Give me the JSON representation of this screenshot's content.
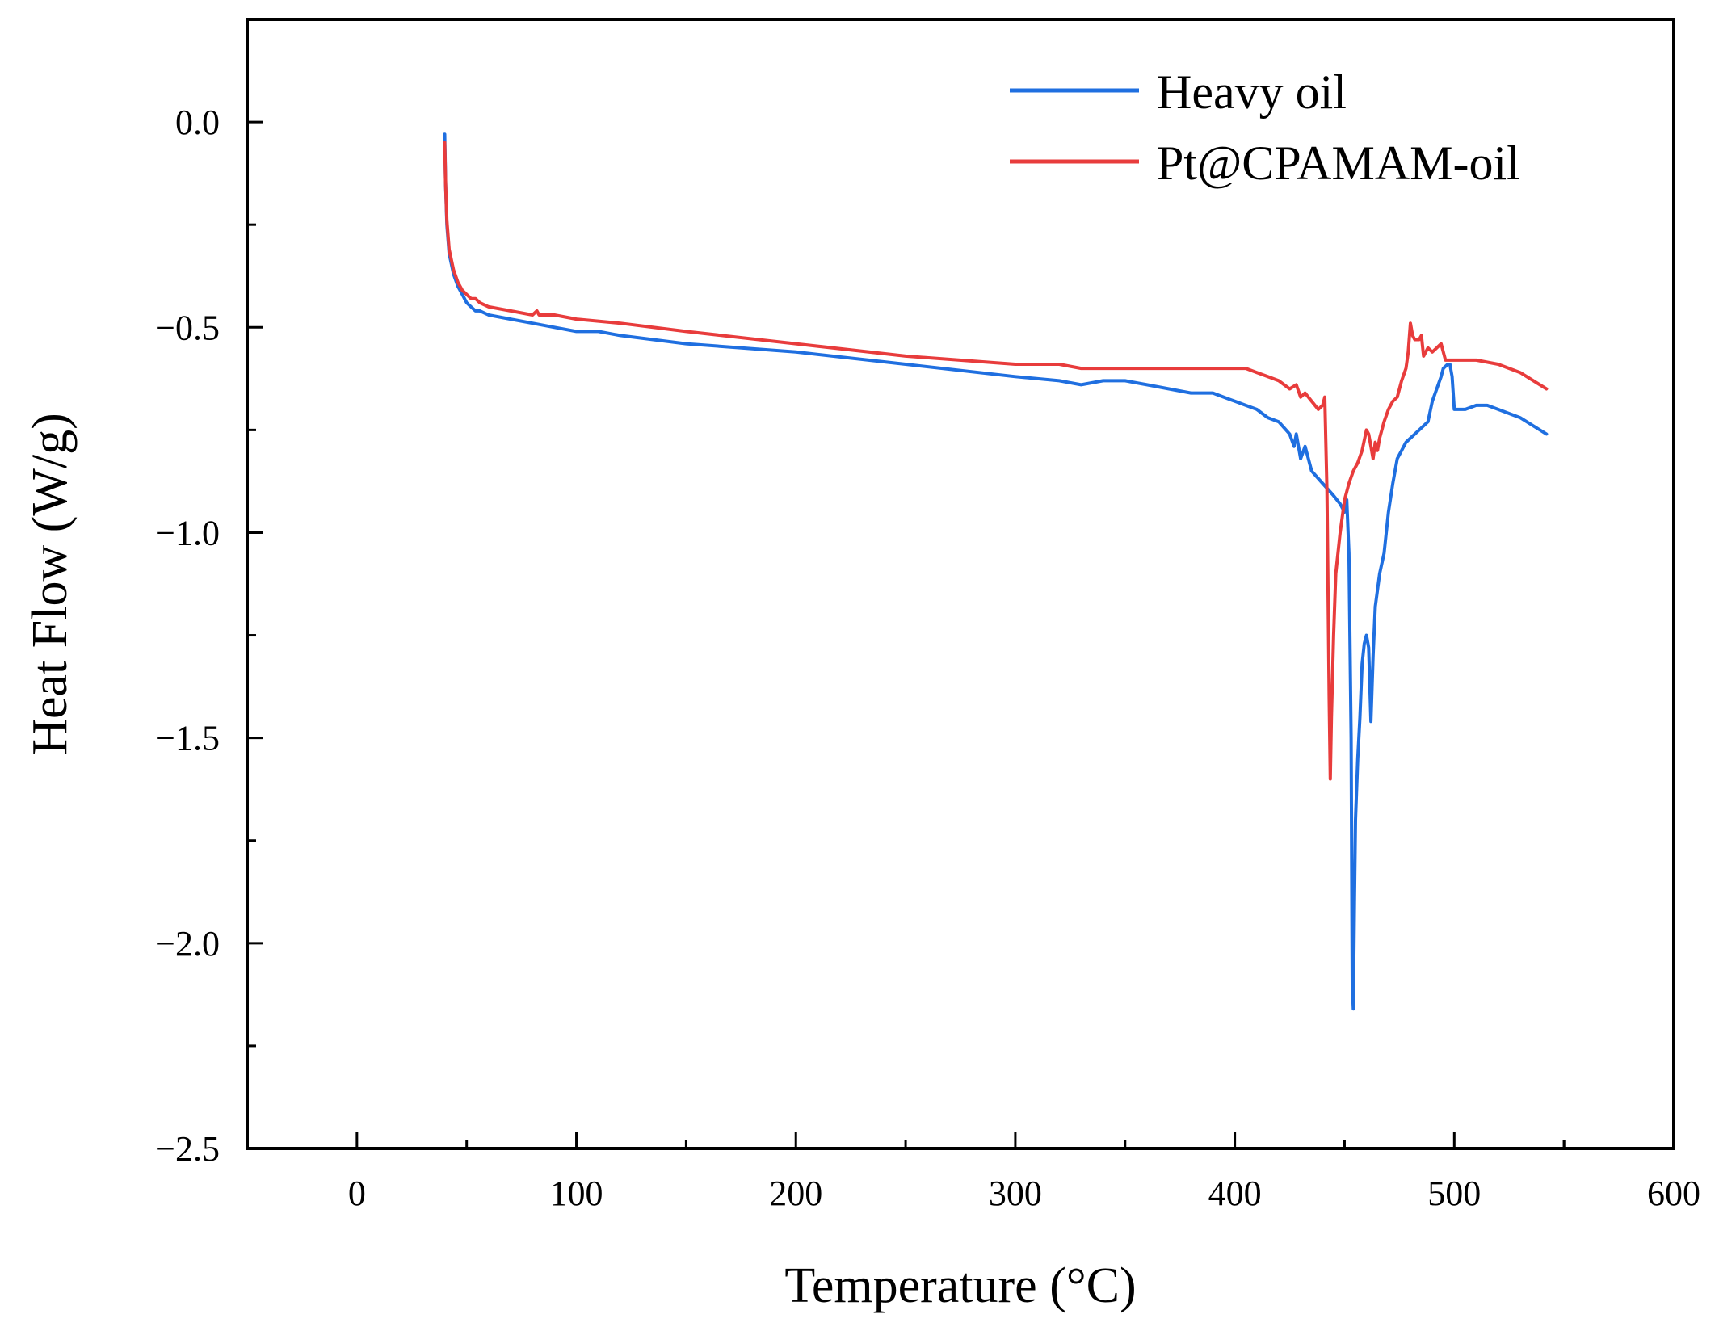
{
  "chart_data": {
    "type": "line",
    "title": "",
    "xlabel": "Temperature (°C)",
    "ylabel": "Heat Flow (W/g)",
    "xlim": [
      -50,
      600
    ],
    "ylim": [
      -2.5,
      0.25
    ],
    "x_ticks": [
      0,
      100,
      200,
      300,
      400,
      500,
      600
    ],
    "x_tick_labels": [
      "0",
      "100",
      "200",
      "300",
      "400",
      "500",
      "600"
    ],
    "y_ticks": [
      0.0,
      -0.5,
      -1.0,
      -1.5,
      -2.0,
      -2.5
    ],
    "y_tick_labels": [
      "0.0",
      "−0.5",
      "−1.0",
      "−1.5",
      "−2.0",
      "−2.5"
    ],
    "grid": false,
    "legend_position": "top-right",
    "series": [
      {
        "name": "Heavy oil",
        "color": "#1f6fe0",
        "x": [
          40,
          40.4,
          41,
          42,
          44,
          46,
          48,
          50,
          52,
          54,
          56,
          60,
          70,
          80,
          90,
          100,
          110,
          120,
          150,
          200,
          250,
          300,
          320,
          330,
          340,
          350,
          360,
          370,
          380,
          390,
          395,
          400,
          405,
          410,
          415,
          420,
          425,
          427,
          428,
          430,
          432,
          435,
          440,
          445,
          448,
          450,
          451,
          452,
          453,
          453.5,
          454,
          454.5,
          455,
          456,
          457,
          458,
          459,
          460,
          461,
          462,
          463,
          464,
          466,
          468,
          470,
          472,
          474,
          476,
          478,
          480,
          484,
          488,
          490,
          494,
          495,
          497,
          498,
          499,
          500,
          505,
          510,
          515,
          520,
          530,
          542
        ],
        "y": [
          -0.03,
          -0.15,
          -0.25,
          -0.32,
          -0.37,
          -0.4,
          -0.42,
          -0.44,
          -0.45,
          -0.46,
          -0.46,
          -0.47,
          -0.48,
          -0.49,
          -0.5,
          -0.51,
          -0.51,
          -0.52,
          -0.54,
          -0.56,
          -0.59,
          -0.62,
          -0.63,
          -0.64,
          -0.63,
          -0.63,
          -0.64,
          -0.65,
          -0.66,
          -0.66,
          -0.67,
          -0.68,
          -0.69,
          -0.7,
          -0.72,
          -0.73,
          -0.76,
          -0.79,
          -0.76,
          -0.82,
          -0.79,
          -0.85,
          -0.88,
          -0.91,
          -0.93,
          -0.95,
          -0.92,
          -1.05,
          -1.5,
          -2.1,
          -2.16,
          -1.9,
          -1.7,
          -1.55,
          -1.45,
          -1.32,
          -1.27,
          -1.25,
          -1.28,
          -1.46,
          -1.3,
          -1.18,
          -1.1,
          -1.05,
          -0.95,
          -0.88,
          -0.82,
          -0.8,
          -0.78,
          -0.77,
          -0.75,
          -0.73,
          -0.68,
          -0.62,
          -0.6,
          -0.59,
          -0.59,
          -0.62,
          -0.7,
          -0.7,
          -0.69,
          -0.69,
          -0.7,
          -0.72,
          -0.76
        ]
      },
      {
        "name": "Pt@CPAMAM-oil",
        "color": "#e83c3c",
        "x": [
          40,
          40.4,
          41,
          42,
          44,
          46,
          48,
          50,
          52,
          54,
          56,
          60,
          70,
          80,
          82,
          83,
          84,
          90,
          100,
          120,
          150,
          200,
          250,
          300,
          320,
          330,
          340,
          350,
          360,
          370,
          380,
          390,
          395,
          400,
          405,
          410,
          415,
          420,
          425,
          428,
          430,
          432,
          435,
          438,
          440,
          441,
          442,
          443,
          443.5,
          444,
          445,
          446,
          448,
          450,
          452,
          454,
          456,
          458,
          460,
          461,
          462,
          463,
          464,
          465,
          466,
          468,
          470,
          472,
          474,
          476,
          478,
          479,
          480,
          481,
          482,
          484,
          485,
          486,
          488,
          490,
          492,
          494,
          496,
          500,
          510,
          520,
          530,
          542
        ],
        "y": [
          -0.05,
          -0.15,
          -0.24,
          -0.31,
          -0.36,
          -0.39,
          -0.41,
          -0.42,
          -0.43,
          -0.43,
          -0.44,
          -0.45,
          -0.46,
          -0.47,
          -0.46,
          -0.47,
          -0.47,
          -0.47,
          -0.48,
          -0.49,
          -0.51,
          -0.54,
          -0.57,
          -0.59,
          -0.59,
          -0.6,
          -0.6,
          -0.6,
          -0.6,
          -0.6,
          -0.6,
          -0.6,
          -0.6,
          -0.6,
          -0.6,
          -0.61,
          -0.62,
          -0.63,
          -0.65,
          -0.64,
          -0.67,
          -0.66,
          -0.68,
          -0.7,
          -0.69,
          -0.67,
          -0.9,
          -1.4,
          -1.6,
          -1.45,
          -1.25,
          -1.1,
          -1.0,
          -0.92,
          -0.88,
          -0.85,
          -0.83,
          -0.8,
          -0.75,
          -0.76,
          -0.79,
          -0.82,
          -0.78,
          -0.8,
          -0.77,
          -0.73,
          -0.7,
          -0.68,
          -0.67,
          -0.63,
          -0.6,
          -0.56,
          -0.49,
          -0.52,
          -0.53,
          -0.53,
          -0.52,
          -0.57,
          -0.55,
          -0.56,
          -0.55,
          -0.54,
          -0.58,
          -0.58,
          -0.58,
          -0.59,
          -0.61,
          -0.65
        ]
      }
    ]
  }
}
